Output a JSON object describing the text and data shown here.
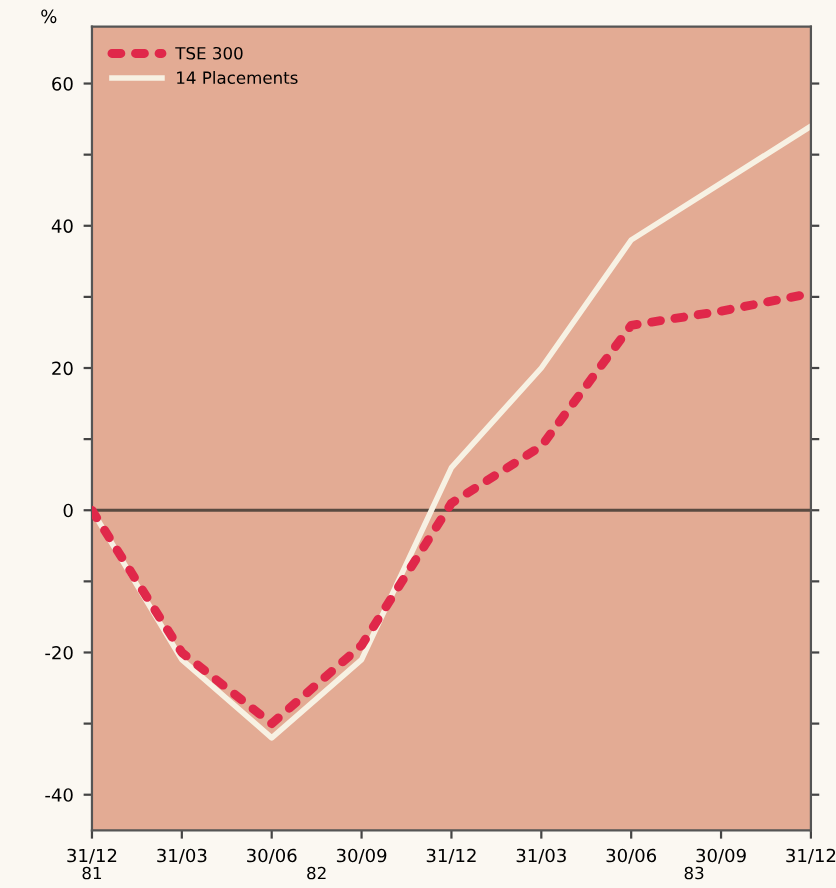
{
  "chart_data": {
    "type": "line",
    "ylabel": "%",
    "categories": [
      "31/12",
      "31/03",
      "30/06",
      "30/09",
      "31/12",
      "31/03",
      "30/06",
      "30/09",
      "31/12"
    ],
    "annotations": [
      "81",
      "82",
      "83"
    ],
    "series": [
      {
        "name": "TSE 300",
        "color": "#e0284a",
        "line_style": "dotted",
        "values": [
          0,
          -20,
          -30,
          -19,
          1,
          9,
          26,
          28,
          30.5
        ]
      },
      {
        "name": "14 Placements",
        "color": "#f7f1e3",
        "line_style": "solid",
        "values": [
          0,
          -21,
          -32,
          -21,
          6,
          20,
          38,
          46,
          54
        ]
      }
    ],
    "ylim": [
      -45,
      68
    ],
    "yticks": [
      {
        "value": -40,
        "label": "-40"
      },
      {
        "value": -30,
        "label": null
      },
      {
        "value": -20,
        "label": "-20"
      },
      {
        "value": -10,
        "label": null
      },
      0,
      {
        "value": 10,
        "label": null
      },
      20,
      {
        "value": 30,
        "label": null
      },
      40,
      {
        "value": 50,
        "label": null
      },
      60
    ],
    "ref_lines": [
      {
        "axis": "y",
        "value": 0,
        "color": "#5a4a40"
      }
    ],
    "grid": false,
    "legend": "top left",
    "marker": "none"
  }
}
